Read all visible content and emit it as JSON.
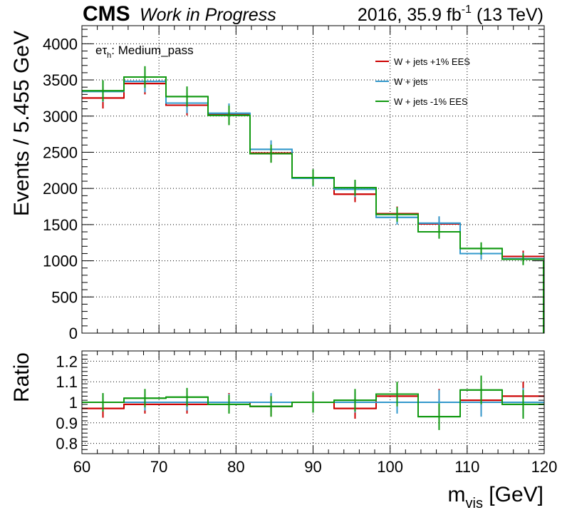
{
  "header": {
    "cms": "CMS",
    "wip": "Work in Progress",
    "lumi_prefix": "2016, 35.9 fb",
    "lumi_exp": "-1",
    "lumi_suffix": " (13 TeV)"
  },
  "chart_data": {
    "type": "line",
    "title": "",
    "category_label": {
      "main": "eτ",
      "sub": "h",
      "rest": ": Medium_pass"
    },
    "x_edges": [
      60,
      65.455,
      70.909,
      76.364,
      81.818,
      87.273,
      92.727,
      98.182,
      103.636,
      109.091,
      114.545,
      120
    ],
    "x_centers": [
      62.73,
      68.18,
      73.64,
      79.09,
      84.55,
      90.0,
      95.45,
      100.91,
      106.36,
      111.82,
      117.27
    ],
    "xlim": [
      60,
      120
    ],
    "xticks": [
      "60",
      "70",
      "80",
      "90",
      "100",
      "110",
      "120"
    ],
    "xlabel": {
      "main": "m",
      "sub": "vis",
      "rest": " [GeV]"
    },
    "upper": {
      "ylabel": "Events / 5.455 GeV",
      "ylim": [
        0,
        4250
      ],
      "yticks": [
        "0",
        "500",
        "1000",
        "1500",
        "2000",
        "2500",
        "3000",
        "3500",
        "4000"
      ],
      "series": [
        {
          "name": "W + jets +1% EES",
          "color": "#cc0000",
          "values": [
            3250,
            3450,
            3150,
            3030,
            2490,
            2140,
            1920,
            1650,
            1510,
            1100,
            1060
          ],
          "errors": [
            145,
            150,
            140,
            135,
            125,
            115,
            110,
            100,
            95,
            85,
            80
          ]
        },
        {
          "name": "W + jets",
          "color": "#3399cc",
          "values": [
            3340,
            3480,
            3180,
            3040,
            2540,
            2140,
            1990,
            1600,
            1520,
            1100,
            1030
          ],
          "errors": [
            145,
            150,
            140,
            135,
            125,
            115,
            110,
            100,
            95,
            85,
            80
          ]
        },
        {
          "name": "W + jets -1% EES",
          "color": "#119911",
          "values": [
            3350,
            3540,
            3270,
            3010,
            2480,
            2150,
            2010,
            1640,
            1400,
            1170,
            1020
          ],
          "errors": [
            145,
            150,
            140,
            135,
            125,
            115,
            110,
            100,
            95,
            85,
            80
          ]
        }
      ]
    },
    "lower": {
      "ylabel": "Ratio",
      "ylim": [
        0.75,
        1.25
      ],
      "yticks": [
        "0.8",
        "0.9",
        "1",
        "1.1",
        "1.2"
      ],
      "series": [
        {
          "name": "W + jets +1% EES",
          "color": "#cc0000",
          "values": [
            0.97,
            0.99,
            0.99,
            1.0,
            0.98,
            1.0,
            0.97,
            1.03,
            1.0,
            1.01,
            1.03
          ],
          "errors": [
            0.045,
            0.045,
            0.045,
            0.045,
            0.05,
            0.05,
            0.05,
            0.06,
            0.065,
            0.075,
            0.07
          ]
        },
        {
          "name": "W + jets",
          "color": "#3399cc",
          "values": [
            1.0,
            1.0,
            1.0,
            1.0,
            1.0,
            1.0,
            1.0,
            1.0,
            1.0,
            1.0,
            1.0
          ],
          "errors": [
            0.04,
            0.04,
            0.04,
            0.04,
            0.045,
            0.05,
            0.05,
            0.055,
            0.06,
            0.07,
            0.07
          ]
        },
        {
          "name": "W + jets -1% EES",
          "color": "#119911",
          "values": [
            1.0,
            1.02,
            1.025,
            0.99,
            0.98,
            1.0,
            1.01,
            1.04,
            0.93,
            1.06,
            0.99
          ],
          "errors": [
            0.045,
            0.045,
            0.045,
            0.045,
            0.05,
            0.05,
            0.055,
            0.06,
            0.065,
            0.07,
            0.07
          ]
        }
      ]
    }
  }
}
